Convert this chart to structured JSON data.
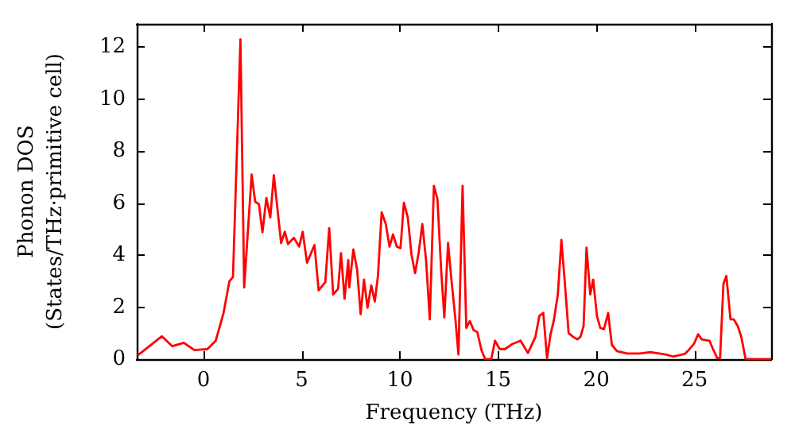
{
  "chart_data": {
    "type": "line",
    "xlabel": "Frequency (THz)",
    "ylabel": "Phonon DOS\n(States/THz·primitive cell)",
    "xlim": [
      -3.4,
      28.9
    ],
    "ylim": [
      0,
      12.9
    ],
    "xticks": [
      0,
      5,
      10,
      15,
      20,
      25
    ],
    "yticks": [
      0,
      2,
      4,
      6,
      8,
      10,
      12
    ],
    "grid": false,
    "marker": "none",
    "line_style": "solid",
    "series": [
      {
        "color": "#ff0000",
        "x": [
          -3.36,
          -2.12,
          -1.59,
          -1.0,
          -0.46,
          0.2,
          0.62,
          1.02,
          1.32,
          1.5,
          1.88,
          2.07,
          2.45,
          2.63,
          2.82,
          3.0,
          3.2,
          3.4,
          3.58,
          3.95,
          4.14,
          4.3,
          4.6,
          4.87,
          5.05,
          5.27,
          5.65,
          5.86,
          6.2,
          6.4,
          6.6,
          6.85,
          7.0,
          7.18,
          7.37,
          7.42,
          7.63,
          7.82,
          8.0,
          8.17,
          8.35,
          8.54,
          8.72,
          8.88,
          9.07,
          9.28,
          9.47,
          9.65,
          9.84,
          10.03,
          10.2,
          10.4,
          10.59,
          10.77,
          10.96,
          11.14,
          11.33,
          11.52,
          11.73,
          11.91,
          12.1,
          12.26,
          12.45,
          12.63,
          12.82,
          12.98,
          13.19,
          13.38,
          13.56,
          13.75,
          13.94,
          14.15,
          14.34,
          14.65,
          14.84,
          15.08,
          15.35,
          15.74,
          16.14,
          16.52,
          16.9,
          17.1,
          17.3,
          17.49,
          17.67,
          17.83,
          18.04,
          18.22,
          18.4,
          18.59,
          18.82,
          19.03,
          19.19,
          19.35,
          19.5,
          19.69,
          19.84,
          20.03,
          20.2,
          20.39,
          20.6,
          20.79,
          21.05,
          21.57,
          22.2,
          22.75,
          23.53,
          23.93,
          24.5,
          24.7,
          24.97,
          25.18,
          25.37,
          25.76,
          25.94,
          26.15,
          26.3,
          26.47,
          26.62,
          26.83,
          27.0,
          27.2,
          27.38,
          27.6,
          28.9
        ],
        "values": [
          0.14,
          0.88,
          0.5,
          0.63,
          0.35,
          0.39,
          0.71,
          1.78,
          3.0,
          3.16,
          12.3,
          2.76,
          7.1,
          6.06,
          5.96,
          4.88,
          6.2,
          5.45,
          7.08,
          4.47,
          4.9,
          4.43,
          4.67,
          4.33,
          4.9,
          3.71,
          4.39,
          2.65,
          2.96,
          5.04,
          2.49,
          2.7,
          4.08,
          2.33,
          3.82,
          2.76,
          4.22,
          3.45,
          1.73,
          3.06,
          1.98,
          2.84,
          2.22,
          3.2,
          5.65,
          5.2,
          4.33,
          4.8,
          4.33,
          4.27,
          6.02,
          5.45,
          4.02,
          3.31,
          4.12,
          5.2,
          3.82,
          1.53,
          6.67,
          6.16,
          3.41,
          1.61,
          4.47,
          3.0,
          1.57,
          0.18,
          6.67,
          1.2,
          1.47,
          1.12,
          1.04,
          0.35,
          0,
          0,
          0.71,
          0.39,
          0.39,
          0.59,
          0.71,
          0.24,
          0.86,
          1.67,
          1.78,
          0.04,
          0.96,
          1.47,
          2.49,
          4.59,
          2.9,
          1.0,
          0.86,
          0.76,
          0.86,
          1.27,
          4.29,
          2.49,
          3.06,
          1.67,
          1.2,
          1.16,
          1.78,
          0.55,
          0.31,
          0.22,
          0.22,
          0.27,
          0.18,
          0.1,
          0.2,
          0.35,
          0.59,
          0.96,
          0.76,
          0.71,
          0.39,
          0.04,
          0.04,
          2.9,
          3.2,
          1.53,
          1.53,
          1.27,
          0.86,
          0,
          0
        ]
      }
    ]
  }
}
